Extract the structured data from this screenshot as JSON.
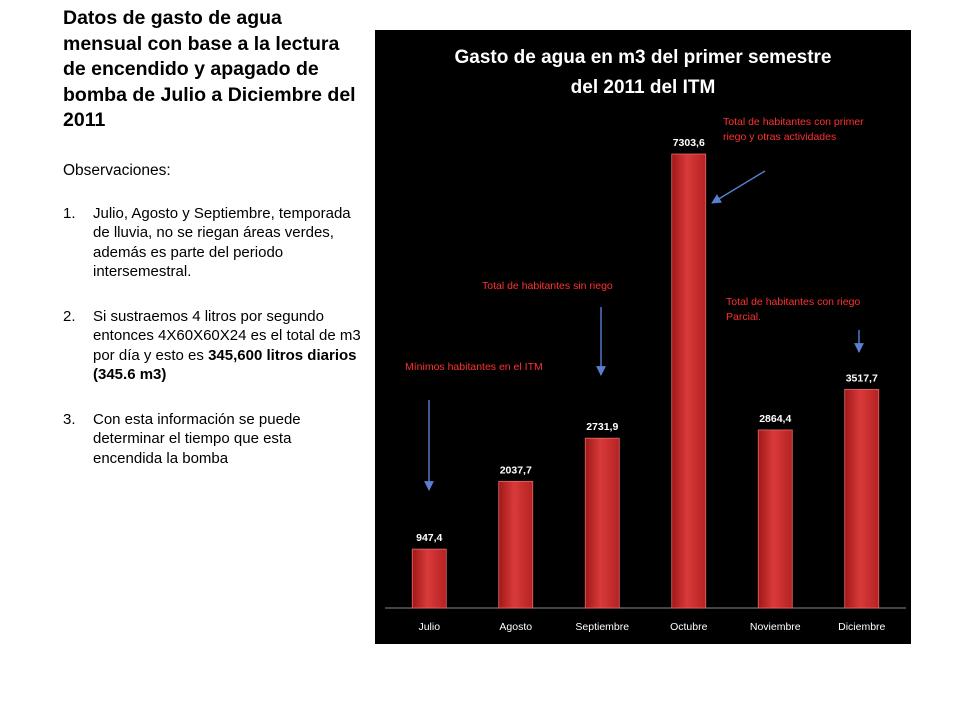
{
  "heading": "Datos de gasto de agua mensual con base a la lectura de encendido y apagado de bomba de Julio a Diciembre del 2011",
  "observations": {
    "title": "Observaciones:",
    "items": [
      {
        "num": "1.",
        "text": "Julio, Agosto y Septiembre, temporada de lluvia, no se riegan áreas verdes, además es parte del periodo intersemestral."
      },
      {
        "num": "2.",
        "text_pre": "Si sustraemos 4 litros por segundo entonces 4X60X60X24 es el total de m3 por día y esto es ",
        "text_bold": "345,600 litros diarios (345.6 m3)"
      },
      {
        "num": "3.",
        "text": "Con esta información se puede determinar el tiempo que esta encendida la bomba"
      }
    ]
  },
  "colors": {
    "bar": "#d93a3a",
    "annotation": "#ff3030",
    "arrow": "#5a7fd0",
    "background": "#000000"
  },
  "chart_data": {
    "type": "bar",
    "title_lines": [
      "Gasto de agua en m3 del primer semestre",
      "del 2011 del ITM"
    ],
    "categories": [
      "Julio",
      "Agosto",
      "Septiembre",
      "Octubre",
      "Noviembre",
      "Diciembre"
    ],
    "values": [
      947.4,
      2037.7,
      2731.9,
      7303.6,
      2864.4,
      3517.7
    ],
    "value_labels": [
      "947,4",
      "2037,7",
      "2731,9",
      "7303,6",
      "2864,4",
      "3517,7"
    ],
    "ylim": [
      0,
      8000
    ],
    "grid": false,
    "annotations": [
      {
        "lines": [
          "Mínimos habitantes en el ITM"
        ],
        "target_category": "Julio"
      },
      {
        "lines": [
          "Total de habitantes sin riego"
        ],
        "target_category": "Septiembre"
      },
      {
        "lines": [
          "Total de habitantes con primer",
          " riego y otras actividades"
        ],
        "target_category": "Octubre"
      },
      {
        "lines": [
          "Total de habitantes con riego",
          "Parcial."
        ],
        "target_category": "Diciembre"
      }
    ]
  }
}
